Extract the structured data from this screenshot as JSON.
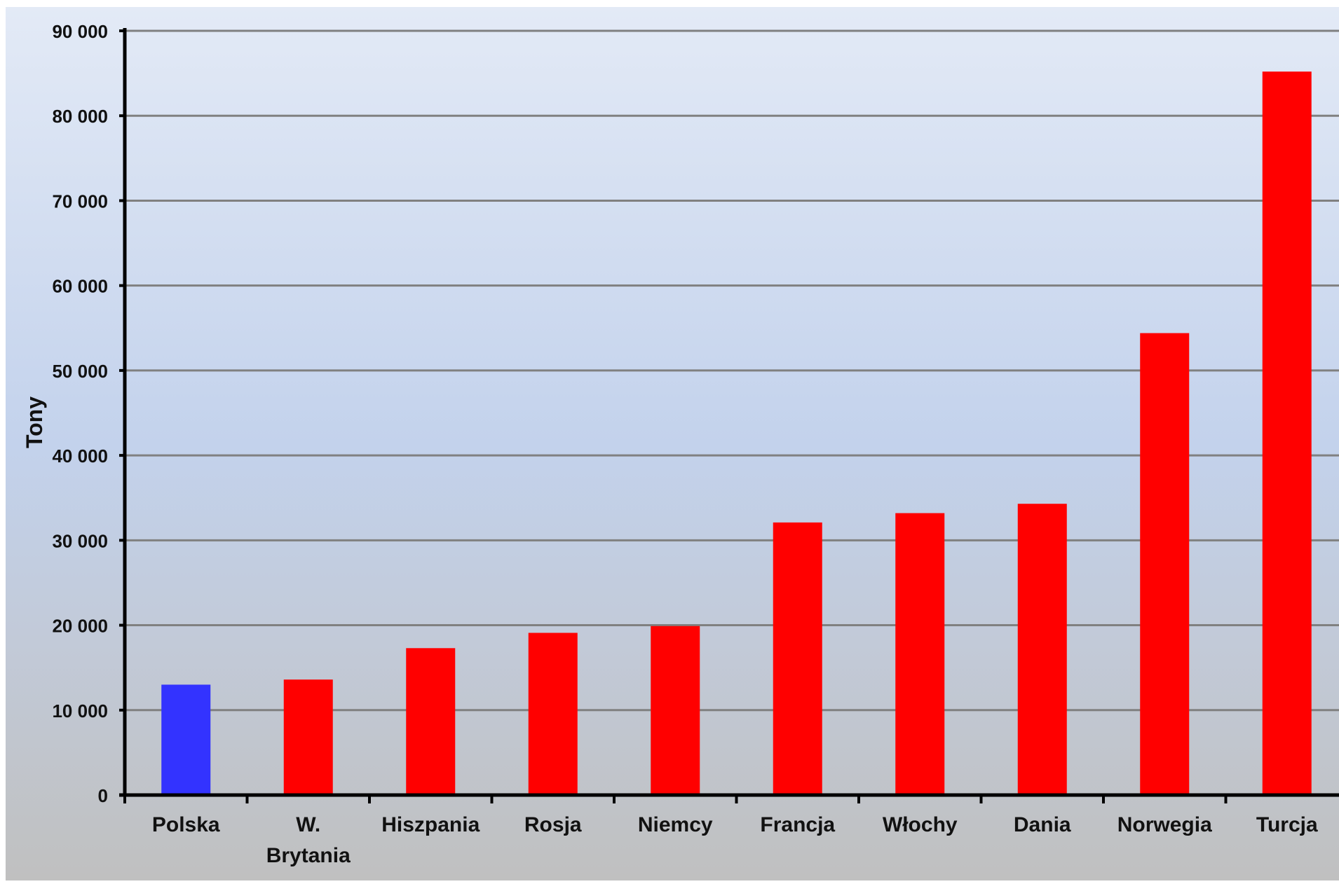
{
  "chart_data": {
    "type": "bar",
    "title": "",
    "xlabel": "",
    "ylabel": "Tony",
    "ylim": [
      0,
      90000
    ],
    "yticks": [
      0,
      10000,
      20000,
      30000,
      40000,
      50000,
      60000,
      70000,
      80000,
      90000
    ],
    "ytick_labels": [
      "0",
      "10 000",
      "20 000",
      "30 000",
      "40 000",
      "50 000",
      "60 000",
      "70 000",
      "80 000",
      "90 000"
    ],
    "categories": [
      "Polska",
      "W. Brytania",
      "Hiszpania",
      "Rosja",
      "Niemcy",
      "Francja",
      "Włochy",
      "Dania",
      "Norwegia",
      "Turcja"
    ],
    "values": [
      13000,
      13600,
      17300,
      19100,
      19900,
      32100,
      33200,
      34300,
      54400,
      85200
    ],
    "bar_colors": [
      "#3333ff",
      "#ff0000",
      "#ff0000",
      "#ff0000",
      "#ff0000",
      "#ff0000",
      "#ff0000",
      "#ff0000",
      "#ff0000",
      "#ff0000"
    ],
    "grid": true,
    "legend": "none",
    "colors": {
      "background_top": "#e3eaf6",
      "background_mid": "#c3d2ec",
      "background_bottom": "#c0c0c0",
      "gridline": "#808080",
      "axis": "#000000"
    }
  }
}
